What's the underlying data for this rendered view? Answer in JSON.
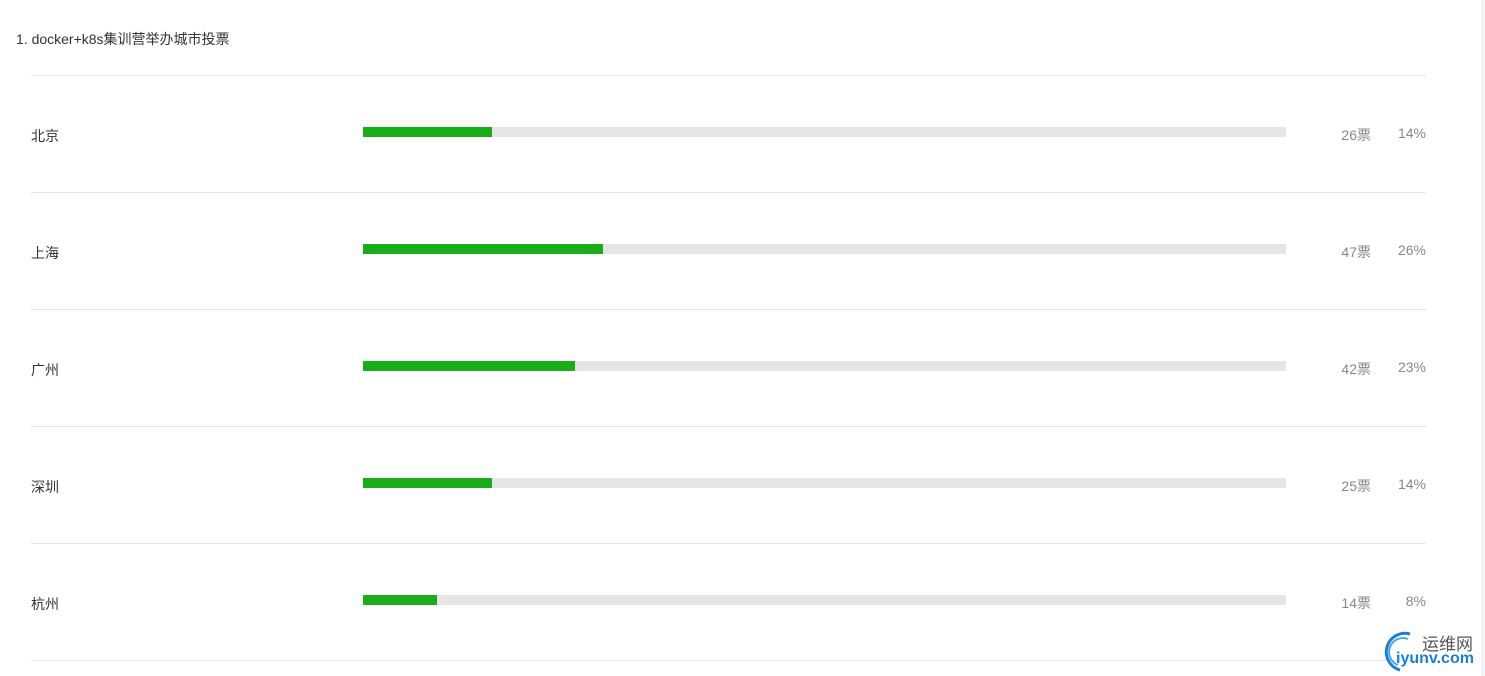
{
  "title": "1. docker+k8s集训营举办城市投票",
  "accent_color": "#1aad19",
  "options": [
    {
      "name": "北京",
      "votes": "26票",
      "percent": "14%",
      "fill": 14
    },
    {
      "name": "上海",
      "votes": "47票",
      "percent": "26%",
      "fill": 26
    },
    {
      "name": "广州",
      "votes": "42票",
      "percent": "23%",
      "fill": 23
    },
    {
      "name": "深圳",
      "votes": "25票",
      "percent": "14%",
      "fill": 14
    },
    {
      "name": "杭州",
      "votes": "14票",
      "percent": "8%",
      "fill": 8
    }
  ],
  "watermark": {
    "line1": "运维网",
    "line2": "iyunv.com"
  }
}
